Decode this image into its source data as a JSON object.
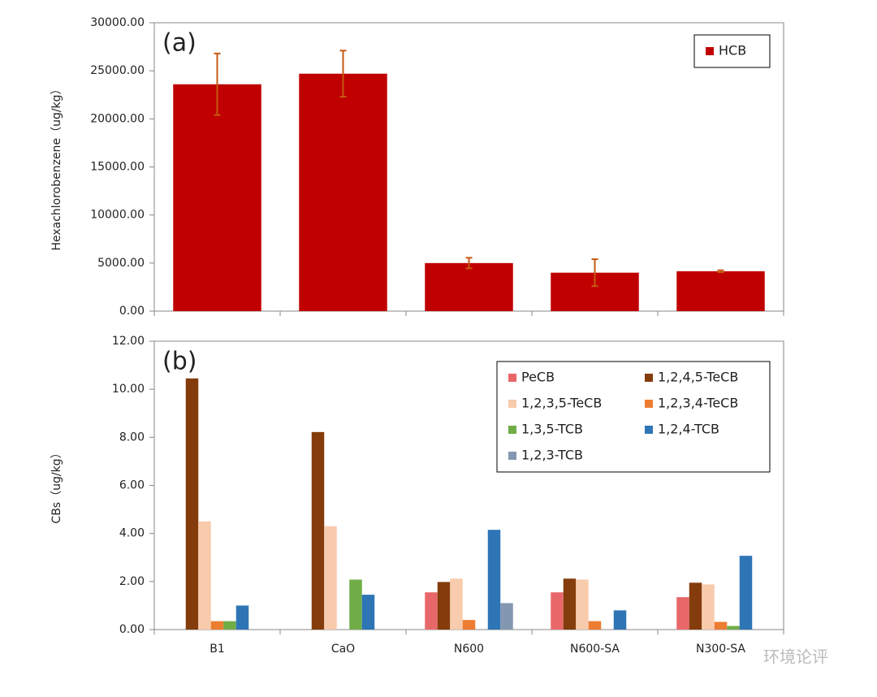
{
  "chart_data": [
    {
      "type": "bar",
      "annotation": "(a)",
      "y_label": "Hexachlorobenzene（ug/kg）",
      "categories": [
        null,
        null,
        null,
        null,
        null
      ],
      "series": [
        {
          "name": "HCB",
          "color": "#c00000",
          "error_color": "#c55a11",
          "values": [
            23600,
            24700,
            5000,
            4000,
            4150
          ],
          "errors": [
            3200,
            2400,
            550,
            1400,
            100
          ]
        }
      ],
      "ylim": [
        0,
        30000
      ],
      "yticks": [
        {
          "value": 0,
          "label": "0.00"
        },
        {
          "value": 5000,
          "label": "5000.00"
        },
        {
          "value": 10000,
          "label": "10000.00"
        },
        {
          "value": 15000,
          "label": "15000.00"
        },
        {
          "value": 20000,
          "label": "20000.00"
        },
        {
          "value": 25000,
          "label": "25000.00"
        },
        {
          "value": 30000,
          "label": "30000.00"
        }
      ],
      "legend": "upper right"
    },
    {
      "type": "bar",
      "annotation": "(b)",
      "y_label": "CBs（ug/kg）",
      "categories": [
        "B1",
        "CaO",
        "N600",
        "N600-SA",
        "N300-SA"
      ],
      "series": [
        {
          "name": "PeCB",
          "color": "#e8686a",
          "values": [
            0,
            0,
            1.55,
            1.55,
            1.35
          ]
        },
        {
          "name": "1,2,4,5-TeCB",
          "color": "#843c0c",
          "values": [
            10.45,
            8.22,
            1.98,
            2.12,
            1.95
          ]
        },
        {
          "name": "1,2,3,5-TeCB",
          "color": "#f8cbad",
          "values": [
            4.5,
            4.3,
            2.12,
            2.08,
            1.88
          ]
        },
        {
          "name": "1,2,3,4-TeCB",
          "color": "#ed7d31",
          "values": [
            0.35,
            0,
            0.4,
            0.35,
            0.32
          ]
        },
        {
          "name": "1,3,5-TCB",
          "color": "#70ad47",
          "values": [
            0.35,
            2.08,
            0,
            0,
            0.15
          ]
        },
        {
          "name": "1,2,4-TCB",
          "color": "#2e75b6",
          "values": [
            1.0,
            1.45,
            4.15,
            0.8,
            3.07
          ]
        },
        {
          "name": "1,2,3-TCB",
          "color": "#8497b0",
          "values": [
            0,
            0,
            1.1,
            0,
            0
          ]
        }
      ],
      "ylim": [
        0,
        12
      ],
      "yticks": [
        {
          "value": 0,
          "label": "0.00"
        },
        {
          "value": 2,
          "label": "2.00"
        },
        {
          "value": 4,
          "label": "4.00"
        },
        {
          "value": 6,
          "label": "6.00"
        },
        {
          "value": 8,
          "label": "8.00"
        },
        {
          "value": 10,
          "label": "10.00"
        },
        {
          "value": 12,
          "label": "12.00"
        }
      ],
      "legend": "upper right"
    }
  ],
  "watermark": "环境论评"
}
